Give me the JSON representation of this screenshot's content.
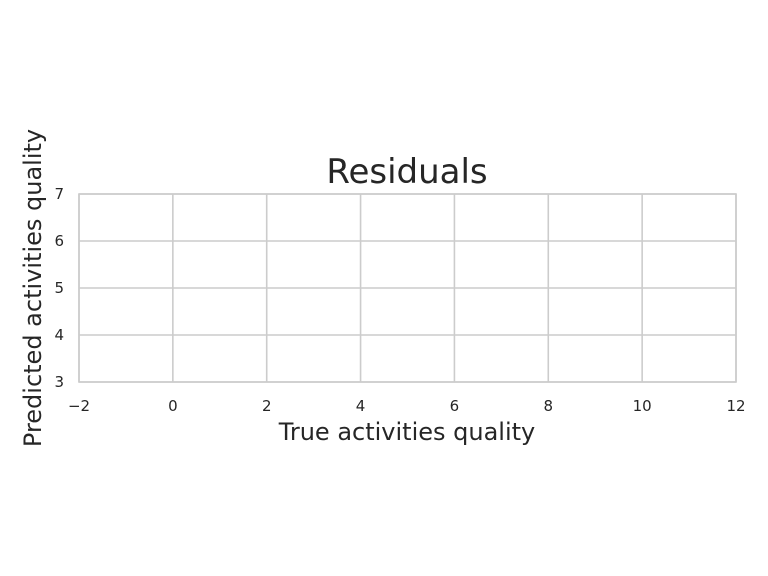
{
  "chart_data": {
    "type": "scatter",
    "title": "Residuals",
    "xlabel": "True activities quality",
    "ylabel": "Predicted activities quality",
    "xlim": [
      -2,
      12
    ],
    "ylim": [
      3,
      7
    ],
    "xticks": [
      -2,
      0,
      2,
      4,
      6,
      8,
      10,
      12
    ],
    "xtick_labels": [
      "−2",
      "0",
      "2",
      "4",
      "6",
      "8",
      "10",
      "12"
    ],
    "yticks": [
      3,
      4,
      5,
      6,
      7
    ],
    "ytick_labels": [
      "3",
      "4",
      "5",
      "6",
      "7"
    ],
    "grid": true,
    "legend": "none",
    "series": [],
    "colors": {
      "grid": "#cccccc",
      "text": "#262626",
      "background": "#ffffff"
    }
  }
}
